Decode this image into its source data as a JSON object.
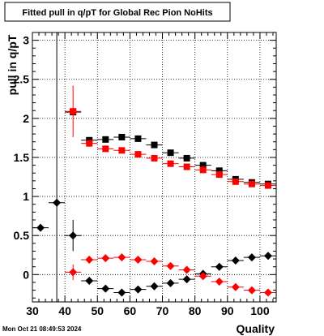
{
  "canvas": {
    "title": "Fitted pull in q/pT for Global Rec Pion NoHits",
    "timestamp": "Mon Oct 21 08:49:53 2024"
  },
  "chart_data": {
    "type": "scatter",
    "title": "Fitted pull in q/pT for Global Rec Pion NoHits",
    "xlabel": "Quality",
    "ylabel": "pull in q/pT",
    "xlim": [
      30,
      105
    ],
    "ylim": [
      -0.35,
      3.1
    ],
    "grid": true,
    "x_ticks": [
      30,
      40,
      50,
      60,
      70,
      80,
      90,
      100
    ],
    "y_ticks": [
      0,
      0.5,
      1,
      1.5,
      2,
      2.5,
      3
    ],
    "x_tick_labels": [
      "30",
      "40",
      "50",
      "60",
      "70",
      "80",
      "90",
      "100"
    ],
    "y_tick_labels": [
      "0",
      "0.5",
      "1",
      "1.5",
      "2",
      "2.5",
      "3"
    ],
    "series": [
      {
        "color": "#000000",
        "marker": "square",
        "points": [
          {
            "x": 42.5,
            "y": 2.08,
            "yerr": 0.0
          },
          {
            "x": 47.5,
            "y": 1.72,
            "yerr": 0.0
          },
          {
            "x": 52.5,
            "y": 1.73,
            "yerr": 0.0
          },
          {
            "x": 57.5,
            "y": 1.76,
            "yerr": 0.0
          },
          {
            "x": 62.5,
            "y": 1.74,
            "yerr": 0.0
          },
          {
            "x": 67.5,
            "y": 1.66,
            "yerr": 0.0
          },
          {
            "x": 72.5,
            "y": 1.56,
            "yerr": 0.0
          },
          {
            "x": 77.5,
            "y": 1.49,
            "yerr": 0.0
          },
          {
            "x": 82.5,
            "y": 1.4,
            "yerr": 0.0
          },
          {
            "x": 87.5,
            "y": 1.33,
            "yerr": 0.0
          },
          {
            "x": 92.5,
            "y": 1.22,
            "yerr": 0.0
          },
          {
            "x": 97.5,
            "y": 1.18,
            "yerr": 0.0
          },
          {
            "x": 102.5,
            "y": 1.16,
            "yerr": 0.0
          }
        ]
      },
      {
        "color": "#ff0000",
        "marker": "square",
        "points": [
          {
            "x": 42.5,
            "y": 2.09,
            "yerr": 0.33
          },
          {
            "x": 47.5,
            "y": 1.68,
            "yerr": 0.0
          },
          {
            "x": 52.5,
            "y": 1.61,
            "yerr": 0.0
          },
          {
            "x": 57.5,
            "y": 1.59,
            "yerr": 0.0
          },
          {
            "x": 62.5,
            "y": 1.54,
            "yerr": 0.0
          },
          {
            "x": 67.5,
            "y": 1.49,
            "yerr": 0.0
          },
          {
            "x": 72.5,
            "y": 1.42,
            "yerr": 0.0
          },
          {
            "x": 77.5,
            "y": 1.38,
            "yerr": 0.0
          },
          {
            "x": 82.5,
            "y": 1.34,
            "yerr": 0.0
          },
          {
            "x": 87.5,
            "y": 1.28,
            "yerr": 0.0
          },
          {
            "x": 92.5,
            "y": 1.19,
            "yerr": 0.0
          },
          {
            "x": 97.5,
            "y": 1.16,
            "yerr": 0.0
          },
          {
            "x": 102.5,
            "y": 1.14,
            "yerr": 0.0
          }
        ]
      },
      {
        "color": "#000000",
        "marker": "diamond",
        "points": [
          {
            "x": 32.5,
            "y": 0.6,
            "yerr": 0.0
          },
          {
            "x": 37.5,
            "y": 0.92,
            "yerr": 2.2
          },
          {
            "x": 42.5,
            "y": 0.5,
            "yerr": 0.2
          },
          {
            "x": 47.5,
            "y": -0.08,
            "yerr": 0.0
          },
          {
            "x": 52.5,
            "y": -0.18,
            "yerr": 0.0
          },
          {
            "x": 57.5,
            "y": -0.23,
            "yerr": 0.0
          },
          {
            "x": 62.5,
            "y": -0.19,
            "yerr": 0.0
          },
          {
            "x": 67.5,
            "y": -0.15,
            "yerr": 0.0
          },
          {
            "x": 72.5,
            "y": -0.11,
            "yerr": 0.0
          },
          {
            "x": 77.5,
            "y": -0.06,
            "yerr": 0.0
          },
          {
            "x": 82.5,
            "y": 0.01,
            "yerr": 0.0
          },
          {
            "x": 87.5,
            "y": 0.1,
            "yerr": 0.0
          },
          {
            "x": 92.5,
            "y": 0.18,
            "yerr": 0.0
          },
          {
            "x": 97.5,
            "y": 0.22,
            "yerr": 0.0
          },
          {
            "x": 102.5,
            "y": 0.24,
            "yerr": 0.0
          }
        ]
      },
      {
        "color": "#ff0000",
        "marker": "diamond",
        "points": [
          {
            "x": 42.5,
            "y": 0.03,
            "yerr": 0.1
          },
          {
            "x": 47.5,
            "y": 0.19,
            "yerr": 0.0
          },
          {
            "x": 52.5,
            "y": 0.21,
            "yerr": 0.0
          },
          {
            "x": 57.5,
            "y": 0.22,
            "yerr": 0.0
          },
          {
            "x": 62.5,
            "y": 0.19,
            "yerr": 0.0
          },
          {
            "x": 67.5,
            "y": 0.17,
            "yerr": 0.0
          },
          {
            "x": 72.5,
            "y": 0.11,
            "yerr": 0.0
          },
          {
            "x": 77.5,
            "y": 0.06,
            "yerr": 0.0
          },
          {
            "x": 82.5,
            "y": -0.02,
            "yerr": 0.0
          },
          {
            "x": 87.5,
            "y": -0.09,
            "yerr": 0.0
          },
          {
            "x": 92.5,
            "y": -0.16,
            "yerr": 0.0
          },
          {
            "x": 97.5,
            "y": -0.2,
            "yerr": 0.0
          },
          {
            "x": 102.5,
            "y": -0.23,
            "yerr": 0.0
          }
        ]
      }
    ]
  }
}
